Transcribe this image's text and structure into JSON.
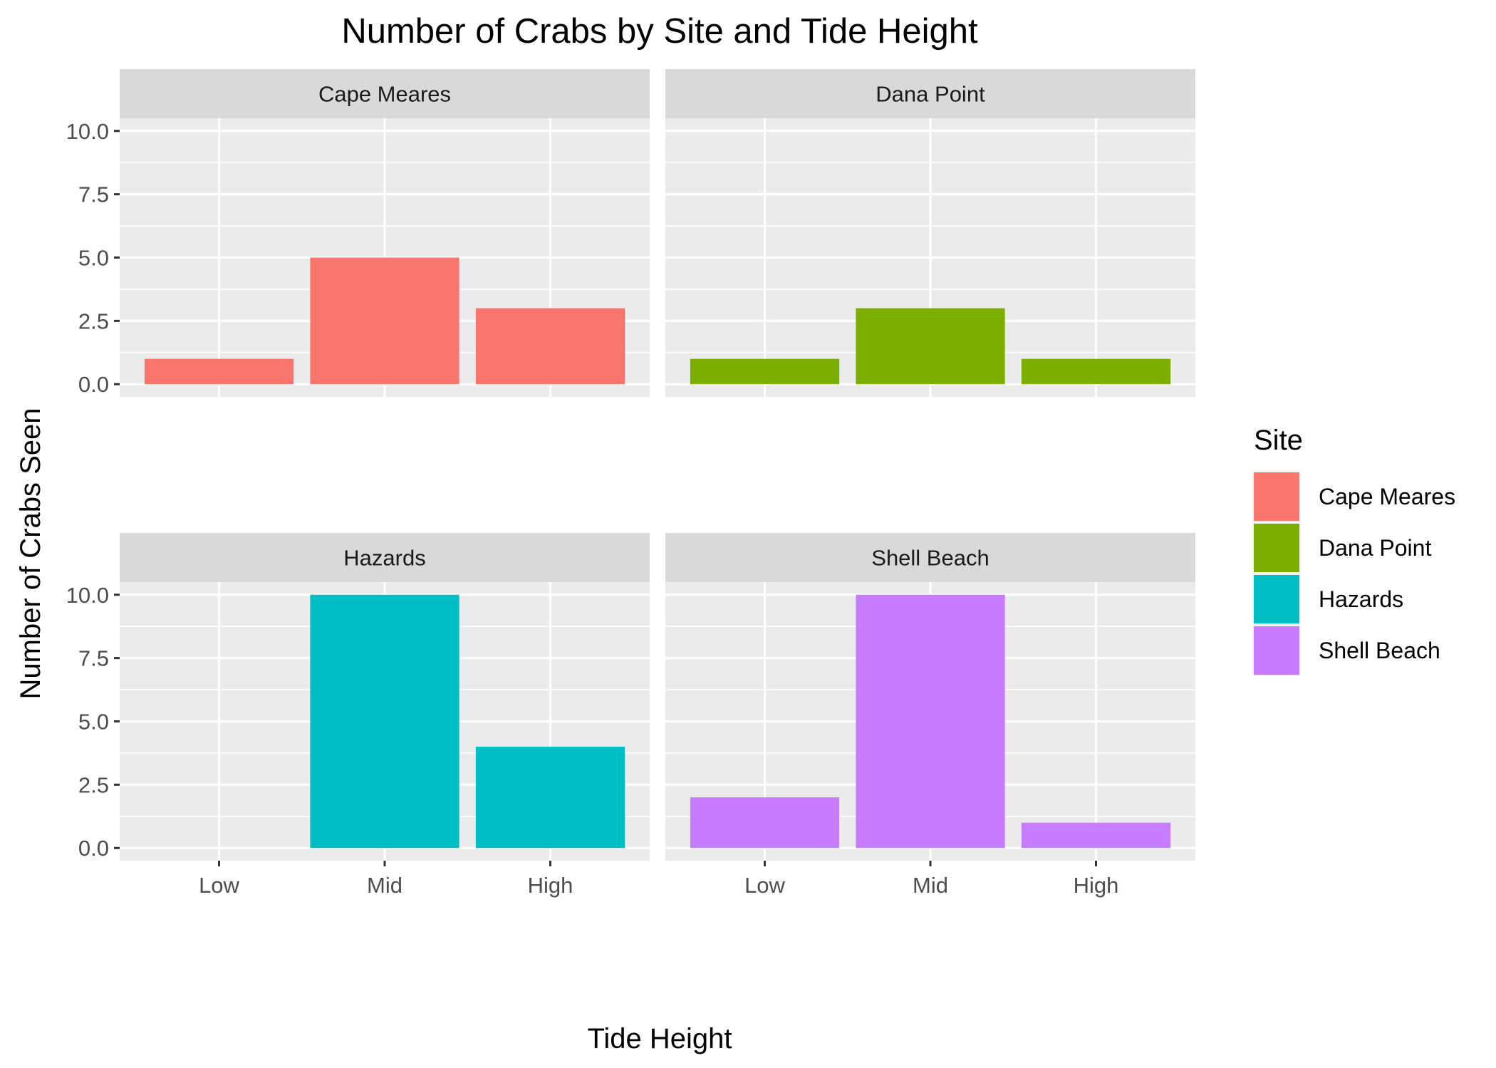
{
  "chart_data": {
    "type": "bar",
    "title": "Number of Crabs by Site and Tide Height",
    "xlabel": "Tide Height",
    "ylabel": "Number of Crabs Seen",
    "categories": [
      "Low",
      "Mid",
      "High"
    ],
    "ylim": [
      0,
      10
    ],
    "yticks": [
      "0.0",
      "2.5",
      "5.0",
      "7.5",
      "10.0"
    ],
    "grid": true,
    "legend": {
      "title": "Site",
      "placement": "right",
      "entries": [
        "Cape Meares",
        "Dana Point",
        "Hazards",
        "Shell Beach"
      ]
    },
    "facets": [
      {
        "name": "Cape Meares",
        "color": "#F8766D",
        "values": [
          1,
          5,
          3
        ]
      },
      {
        "name": "Dana Point",
        "color": "#7CAE00",
        "values": [
          1,
          3,
          1
        ]
      },
      {
        "name": "Hazards",
        "color": "#00BFC4",
        "values": [
          0,
          10,
          4
        ]
      },
      {
        "name": "Shell Beach",
        "color": "#C77CFF",
        "values": [
          2,
          10,
          1
        ]
      }
    ]
  }
}
